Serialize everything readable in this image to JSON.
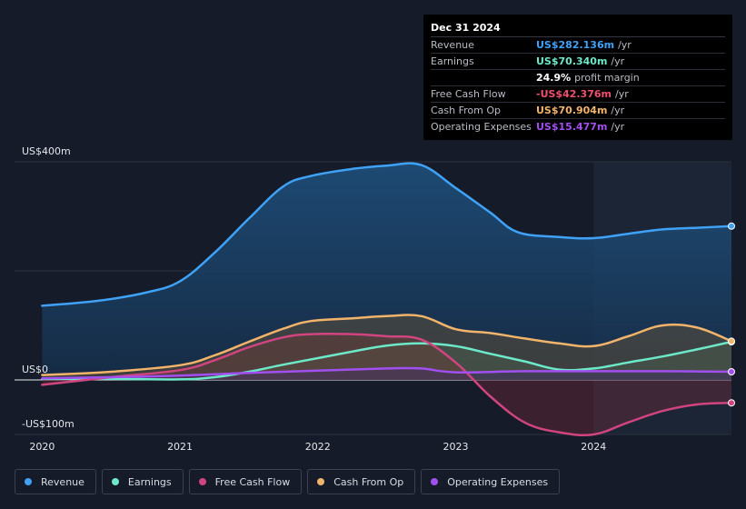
{
  "tooltip": {
    "date": "Dec 31 2024",
    "rows": [
      {
        "label": "Revenue",
        "value": "US$282.136m",
        "unit": "/yr",
        "color": "#3fa2f7"
      },
      {
        "label": "Earnings",
        "value": "US$70.340m",
        "unit": "/yr",
        "color": "#6de8c9"
      },
      {
        "label": "",
        "value": "24.9%",
        "unit": "profit margin",
        "color": "#ffffff"
      },
      {
        "label": "Free Cash Flow",
        "value": "-US$42.376m",
        "unit": "/yr",
        "color": "#f0506e"
      },
      {
        "label": "Cash From Op",
        "value": "US$70.904m",
        "unit": "/yr",
        "color": "#f2b36b"
      },
      {
        "label": "Operating Expenses",
        "value": "US$15.477m",
        "unit": "/yr",
        "color": "#a24ff0"
      }
    ]
  },
  "legend": [
    {
      "label": "Revenue",
      "color": "#3fa2f7"
    },
    {
      "label": "Earnings",
      "color": "#6de8c9"
    },
    {
      "label": "Free Cash Flow",
      "color": "#d0457f"
    },
    {
      "label": "Cash From Op",
      "color": "#f2b36b"
    },
    {
      "label": "Operating Expenses",
      "color": "#a24ff0"
    }
  ],
  "chart_data": {
    "type": "area",
    "title": "",
    "ylabel": "",
    "xlabel": "",
    "ylim": [
      -100,
      400
    ],
    "y_axis_labels": [
      "US$400m",
      "US$0",
      "-US$100m"
    ],
    "x_tick_labels": [
      "2020",
      "2021",
      "2022",
      "2023",
      "2024"
    ],
    "x_tick_values": [
      2020,
      2021,
      2022,
      2023,
      2024
    ],
    "xlim": [
      2019.8,
      2025.0
    ],
    "highlight_start": 2024.0,
    "series": [
      {
        "name": "Revenue",
        "color": "#3fa2f7",
        "fill": "#1a4a72",
        "x": [
          2020.0,
          2020.4,
          2020.75,
          2021.0,
          2021.25,
          2021.5,
          2021.75,
          2021.95,
          2022.25,
          2022.5,
          2022.75,
          2023.0,
          2023.25,
          2023.45,
          2023.75,
          2024.0,
          2024.25,
          2024.5,
          2024.75,
          2025.0
        ],
        "y": [
          136,
          145,
          160,
          181,
          233,
          296,
          355,
          374,
          387,
          393,
          394,
          352,
          307,
          271,
          262,
          260,
          268,
          276,
          279,
          282
        ]
      },
      {
        "name": "Earnings",
        "color": "#6de8c9",
        "fill": "#2e6a62",
        "x": [
          2020.0,
          2020.5,
          2021.0,
          2021.25,
          2021.5,
          2021.75,
          2022.0,
          2022.25,
          2022.5,
          2022.75,
          2023.0,
          2023.25,
          2023.5,
          2023.75,
          2024.0,
          2024.25,
          2024.5,
          2024.75,
          2025.0
        ],
        "y": [
          2,
          2,
          1,
          5,
          15,
          28,
          40,
          52,
          63,
          67,
          62,
          48,
          34,
          19,
          21,
          32,
          43,
          56,
          70
        ]
      },
      {
        "name": "Free Cash Flow",
        "color": "#d0457f",
        "fill": "#6a2a3a",
        "x": [
          2020.0,
          2020.5,
          2021.0,
          2021.25,
          2021.5,
          2021.75,
          2021.95,
          2022.25,
          2022.5,
          2022.75,
          2023.0,
          2023.25,
          2023.5,
          2023.75,
          2024.0,
          2024.25,
          2024.5,
          2024.75,
          2025.0
        ],
        "y": [
          -9,
          5,
          18,
          36,
          60,
          78,
          84,
          84,
          80,
          74,
          32,
          -30,
          -78,
          -96,
          -100,
          -78,
          -57,
          -45,
          -42
        ]
      },
      {
        "name": "Cash From Op",
        "color": "#f2b36b",
        "fill": "#6a5535",
        "x": [
          2020.0,
          2020.5,
          2021.0,
          2021.25,
          2021.5,
          2021.75,
          2021.95,
          2022.25,
          2022.5,
          2022.75,
          2023.0,
          2023.25,
          2023.5,
          2023.75,
          2024.0,
          2024.25,
          2024.5,
          2024.75,
          2025.0
        ],
        "y": [
          9,
          15,
          27,
          45,
          70,
          94,
          108,
          113,
          117,
          117,
          93,
          86,
          76,
          67,
          62,
          80,
          100,
          96,
          71
        ]
      },
      {
        "name": "Operating Expenses",
        "color": "#a24ff0",
        "fill": "#3e2a66",
        "x": [
          2020.0,
          2020.5,
          2021.0,
          2021.5,
          2022.0,
          2022.5,
          2022.75,
          2023.0,
          2023.5,
          2024.0,
          2024.5,
          2025.0
        ],
        "y": [
          3,
          5,
          8,
          13,
          17,
          21,
          21,
          14,
          16,
          16,
          16,
          15
        ]
      }
    ]
  }
}
